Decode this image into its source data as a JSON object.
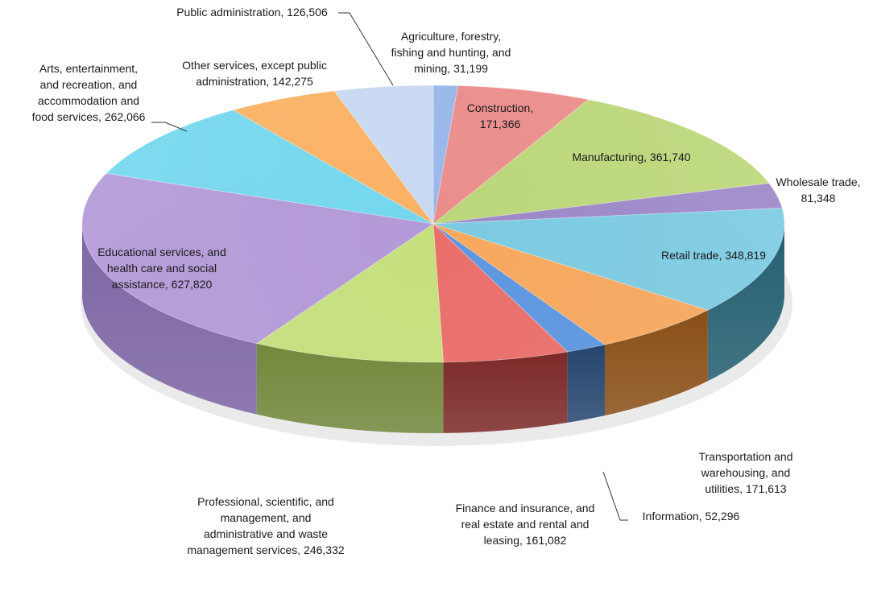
{
  "chart_data": {
    "type": "pie",
    "title": "",
    "slices": [
      {
        "label": "Agriculture, forestry, fishing and hunting, and mining",
        "value": 31199,
        "display": [
          "Agriculture, forestry,",
          "fishing and hunting, and",
          "mining, 31,199"
        ],
        "color": "#9ab7ea",
        "side": "#5a77ab"
      },
      {
        "label": "Construction",
        "value": 171366,
        "display": [
          "Construction,",
          "171,366"
        ],
        "color": "#ea8e8c",
        "side": "#a4403d"
      },
      {
        "label": "Manufacturing",
        "value": 361740,
        "display": [
          "Manufacturing, 361,740"
        ],
        "color": "#bcd77a",
        "side": "#6f8c2f"
      },
      {
        "label": "Wholesale trade",
        "value": 81348,
        "display": [
          "Wholesale trade,",
          "81,348"
        ],
        "color": "#9d88c8",
        "side": "#5a4686"
      },
      {
        "label": "Retail trade",
        "value": 348819,
        "display": [
          "Retail trade, 348,819"
        ],
        "color": "#7ccbe2",
        "side": "#235f70"
      },
      {
        "label": "Transportation and warehousing, and utilities",
        "value": 171613,
        "display": [
          "Transportation and",
          "warehousing, and",
          "utilities, 171,613"
        ],
        "color": "#f7a85e",
        "side": "#8a4f17"
      },
      {
        "label": "Information",
        "value": 52296,
        "display": [
          "Information, 52,296"
        ],
        "color": "#5d96e0",
        "side": "#26466f"
      },
      {
        "label": "Finance and insurance, and real estate and rental and leasing",
        "value": 161082,
        "display": [
          "Finance and insurance, and",
          "real estate and rental and",
          "leasing, 161,082"
        ],
        "color": "#ea6f6b",
        "side": "#7d2a28"
      },
      {
        "label": "Professional, scientific, and management, and administrative and waste management services",
        "value": 246332,
        "display": [
          "Professional, scientific, and",
          "management, and",
          "administrative and waste",
          "management services, 246,332"
        ],
        "color": "#c6e07e",
        "side": "#73883c"
      },
      {
        "label": "Educational services, and health care and social assistance",
        "value": 627820,
        "display": [
          "Educational services, and",
          "health care and social",
          "assistance, 627,820"
        ],
        "color": "#b39ad8",
        "side": "#7d66a5"
      },
      {
        "label": "Arts, entertainment, and recreation, and accommodation and food services",
        "value": 262066,
        "display": [
          "Arts, entertainment,",
          "and recreation, and",
          "accommodation and",
          "food services, 262,066"
        ],
        "color": "#74d7ee",
        "side": "#3a98b0"
      },
      {
        "label": "Other services, except public administration",
        "value": 142275,
        "display": [
          "Other services, except public",
          "administration, 142,275"
        ],
        "color": "#fbb265",
        "side": "#b8742a"
      },
      {
        "label": "Public administration",
        "value": 126506,
        "display": [
          "Public administration, 126,506"
        ],
        "color": "#c8d9f2",
        "side": "#8ea3c2"
      }
    ],
    "legend": "none"
  }
}
